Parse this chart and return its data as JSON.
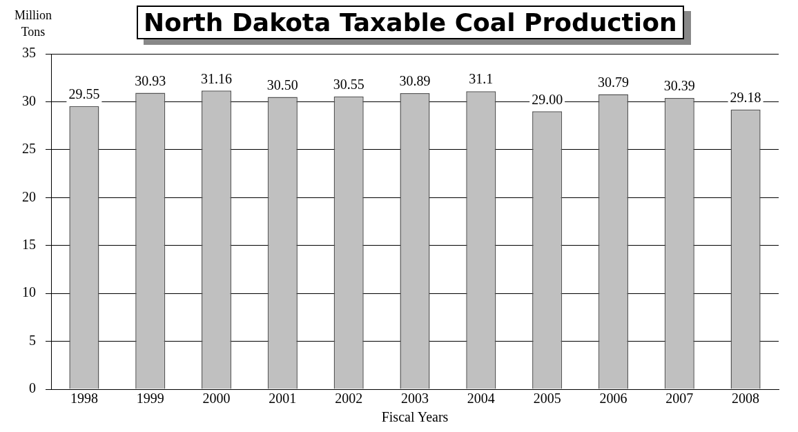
{
  "chart_data": {
    "type": "bar",
    "title": "North Dakota Taxable Coal Production",
    "ylabel": "Million Tons",
    "xlabel": "Fiscal Years",
    "categories": [
      "1998",
      "1999",
      "2000",
      "2001",
      "2002",
      "2003",
      "2004",
      "2005",
      "2006",
      "2007",
      "2008"
    ],
    "values": [
      29.55,
      30.93,
      31.16,
      30.5,
      30.55,
      30.89,
      31.1,
      29.0,
      30.79,
      30.39,
      29.18
    ],
    "value_labels": [
      "29.55",
      "30.93",
      "31.16",
      "30.50",
      "30.55",
      "30.89",
      "31.1",
      "29.00",
      "30.79",
      "30.39",
      "29.18"
    ],
    "color": "#c0c0c0",
    "ylim": [
      0,
      35
    ],
    "yticks": [
      0,
      5,
      10,
      15,
      20,
      25,
      30,
      35
    ],
    "grid": "y",
    "legend": false
  }
}
